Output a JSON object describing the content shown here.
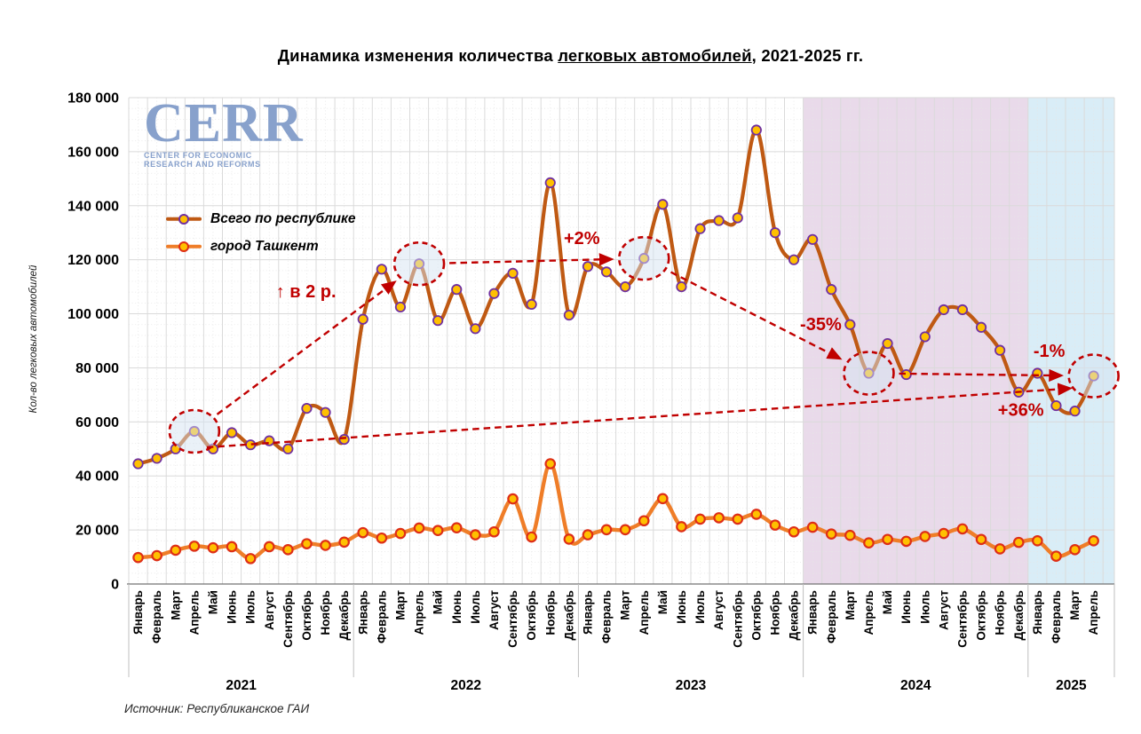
{
  "header": {
    "title_prefix": "Динамика изменения количества ",
    "title_underlined": "легковых автомобилей",
    "title_suffix": ", 2021-2025 гг."
  },
  "logo": {
    "text": "CERR",
    "subtitle_line1": "CENTER FOR ECONOMIC",
    "subtitle_line2": "RESEARCH AND REFORMS",
    "color": "#7E9AC8"
  },
  "footer": {
    "source": "Источник: Республиканское ГАИ"
  },
  "chart_data": {
    "type": "line",
    "title": "Динамика изменения количества легковых автомобилей, 2021-2025 гг.",
    "ylabel": "Кол-во легковых автомобилей",
    "ylim": [
      0,
      180000
    ],
    "ytick_step": 20000,
    "ytick_labels": [
      "0",
      "20 000",
      "40 000",
      "60 000",
      "80 000",
      "100 000",
      "120 000",
      "140 000",
      "160 000",
      "180 000"
    ],
    "grid": true,
    "legend_position": "upper-left",
    "months": [
      "Январь",
      "Февраль",
      "Март",
      "Апрель",
      "Май",
      "Июнь",
      "Июль",
      "Август",
      "Сентябрь",
      "Октябрь",
      "Ноябрь",
      "Декабрь"
    ],
    "years": [
      {
        "label": "2021",
        "months": 12
      },
      {
        "label": "2022",
        "months": 12
      },
      {
        "label": "2023",
        "months": 12
      },
      {
        "label": "2024",
        "months": 12
      },
      {
        "label": "2025",
        "months": 4
      }
    ],
    "series": [
      {
        "name": "Всего по республике",
        "color": "#BF5913",
        "marker_fill": "#FFC000",
        "marker_stroke": "#7030A0",
        "values": [
          44500,
          46500,
          50000,
          56500,
          50000,
          56000,
          51500,
          53000,
          50000,
          65000,
          63500,
          53500,
          98000,
          116500,
          102500,
          118500,
          97500,
          109000,
          94500,
          107500,
          115000,
          103500,
          148500,
          99500,
          117500,
          115500,
          110000,
          120500,
          140500,
          110000,
          131500,
          134500,
          135500,
          168000,
          130000,
          120000,
          127500,
          109000,
          96000,
          78000,
          89000,
          77500,
          91500,
          101500,
          101500,
          95000,
          86500,
          71000,
          78000,
          66000,
          64000,
          77000
        ]
      },
      {
        "name": "город Ташкент",
        "color": "#EF7D28",
        "marker_fill": "#FFC000",
        "marker_stroke": "#DE2E16",
        "values": [
          9800,
          10500,
          12500,
          14000,
          13400,
          13800,
          9400,
          13800,
          12700,
          14900,
          14300,
          15500,
          19000,
          17000,
          18700,
          20700,
          19800,
          20800,
          18200,
          19300,
          31500,
          17400,
          44500,
          16600,
          18200,
          20100,
          20100,
          23400,
          31600,
          21200,
          24000,
          24500,
          24000,
          25800,
          21800,
          19300,
          21000,
          18500,
          18000,
          15200,
          16500,
          15800,
          17600,
          18700,
          20400,
          16500,
          13000,
          15400,
          16000,
          10300,
          12700,
          16000
        ]
      }
    ],
    "highlight_month_indices": [
      3,
      15,
      27,
      39,
      51
    ],
    "annotations": [
      {
        "label": "↑ в 2 р.",
        "from_month": 3,
        "to_month": 15
      },
      {
        "label": "+2%",
        "from_month": 15,
        "to_month": 27
      },
      {
        "label": "-35%",
        "from_month": 27,
        "to_month": 39
      },
      {
        "label": "-1%",
        "from_month": 39,
        "to_month": 51
      },
      {
        "label": "+36%",
        "from_month": 3,
        "to_month": 51
      }
    ],
    "annotation_color": "#C00000",
    "regions": [
      {
        "label": "2024",
        "start_month": 36,
        "end_month": 48,
        "color": "#E9DAEA"
      },
      {
        "label": "2025",
        "start_month": 48,
        "end_month": 52,
        "color": "#D9EDF7",
        "extend_to_edge": true
      }
    ]
  }
}
